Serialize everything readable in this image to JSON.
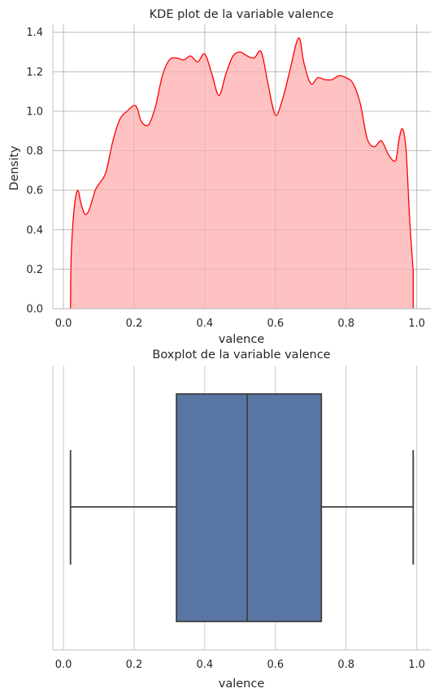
{
  "chart_data": [
    {
      "type": "area",
      "title": "KDE plot de la variable valence",
      "xlabel": "valence",
      "ylabel": "Density",
      "xlim": [
        -0.03,
        1.04
      ],
      "ylim": [
        0,
        1.44
      ],
      "xticks": [
        "0.0",
        "0.2",
        "0.4",
        "0.6",
        "0.8",
        "1.0"
      ],
      "xtick_values": [
        0.0,
        0.2,
        0.4,
        0.6,
        0.8,
        1.0
      ],
      "yticks": [
        "0.0",
        "0.2",
        "0.4",
        "0.6",
        "0.8",
        "1.0",
        "1.2",
        "1.4"
      ],
      "ytick_values": [
        0.0,
        0.2,
        0.4,
        0.6,
        0.8,
        1.0,
        1.2,
        1.4
      ],
      "grid": true,
      "line_color": "#ff0000",
      "fill_color": "#ffbfbf",
      "x": [
        0.02,
        0.022,
        0.03,
        0.04,
        0.05,
        0.06,
        0.07,
        0.08,
        0.09,
        0.1,
        0.12,
        0.14,
        0.16,
        0.18,
        0.2,
        0.21,
        0.22,
        0.24,
        0.26,
        0.28,
        0.3,
        0.32,
        0.34,
        0.36,
        0.38,
        0.4,
        0.42,
        0.44,
        0.46,
        0.48,
        0.5,
        0.52,
        0.54,
        0.56,
        0.58,
        0.6,
        0.62,
        0.64,
        0.66,
        0.67,
        0.68,
        0.7,
        0.72,
        0.74,
        0.76,
        0.78,
        0.8,
        0.82,
        0.84,
        0.86,
        0.88,
        0.9,
        0.92,
        0.94,
        0.95,
        0.96,
        0.97,
        0.98,
        0.99
      ],
      "y": [
        0.0,
        0.27,
        0.5,
        0.6,
        0.53,
        0.48,
        0.49,
        0.54,
        0.6,
        0.63,
        0.69,
        0.85,
        0.96,
        1.0,
        1.03,
        1.01,
        0.95,
        0.93,
        1.02,
        1.18,
        1.26,
        1.27,
        1.26,
        1.28,
        1.25,
        1.29,
        1.19,
        1.08,
        1.19,
        1.28,
        1.3,
        1.28,
        1.27,
        1.3,
        1.13,
        0.98,
        1.06,
        1.2,
        1.35,
        1.36,
        1.25,
        1.14,
        1.17,
        1.16,
        1.16,
        1.18,
        1.17,
        1.14,
        1.04,
        0.86,
        0.82,
        0.85,
        0.78,
        0.75,
        0.86,
        0.91,
        0.8,
        0.45,
        0.19
      ]
    },
    {
      "type": "boxplot",
      "title": "Boxplot de la variable valence",
      "xlabel": "valence",
      "xlim": [
        -0.03,
        1.04
      ],
      "xticks": [
        "0.0",
        "0.2",
        "0.4",
        "0.6",
        "0.8",
        "1.0"
      ],
      "xtick_values": [
        0.0,
        0.2,
        0.4,
        0.6,
        0.8,
        1.0
      ],
      "grid": true,
      "box_color": "#5975a4",
      "edge_color": "#3f3f3f",
      "whisker_low": 0.02,
      "q1": 0.32,
      "median": 0.52,
      "q3": 0.73,
      "whisker_high": 0.99
    }
  ]
}
